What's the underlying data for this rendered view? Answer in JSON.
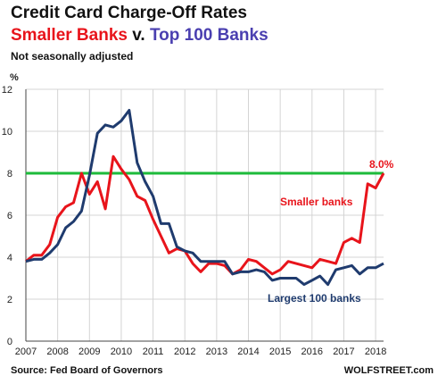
{
  "chart_data": {
    "type": "line",
    "title": "Credit Card Charge-Off Rates",
    "subtitle": {
      "part1": "Smaller Banks",
      "part2": " v. ",
      "part3": "Top 100 Banks"
    },
    "note": "Not seasonally adjusted",
    "ylabel": "%",
    "xlim": [
      2007,
      2018
    ],
    "ylim": [
      0,
      12
    ],
    "x_ticks": [
      2007,
      2008,
      2009,
      2010,
      2011,
      2012,
      2013,
      2014,
      2015,
      2016,
      2017,
      2018
    ],
    "y_ticks": [
      0,
      2,
      4,
      6,
      8,
      10,
      12
    ],
    "grid": true,
    "reference_line": {
      "value": 8.0,
      "color": "#1dbb3a"
    },
    "annotation": "8.0%",
    "series": [
      {
        "name": "Smaller banks",
        "color": "#e8141b",
        "points": [
          [
            2007.0,
            3.8
          ],
          [
            2007.25,
            4.1
          ],
          [
            2007.5,
            4.1
          ],
          [
            2007.75,
            4.6
          ],
          [
            2008.0,
            5.9
          ],
          [
            2008.25,
            6.4
          ],
          [
            2008.5,
            6.6
          ],
          [
            2008.75,
            8.0
          ],
          [
            2009.0,
            7.0
          ],
          [
            2009.25,
            7.6
          ],
          [
            2009.5,
            6.3
          ],
          [
            2009.75,
            8.8
          ],
          [
            2010.0,
            8.2
          ],
          [
            2010.25,
            7.7
          ],
          [
            2010.5,
            6.9
          ],
          [
            2010.75,
            6.7
          ],
          [
            2011.0,
            5.8
          ],
          [
            2011.25,
            5.0
          ],
          [
            2011.5,
            4.2
          ],
          [
            2011.75,
            4.4
          ],
          [
            2012.0,
            4.3
          ],
          [
            2012.25,
            3.7
          ],
          [
            2012.5,
            3.3
          ],
          [
            2012.75,
            3.7
          ],
          [
            2013.0,
            3.7
          ],
          [
            2013.25,
            3.6
          ],
          [
            2013.5,
            3.2
          ],
          [
            2013.75,
            3.4
          ],
          [
            2014.0,
            3.9
          ],
          [
            2014.25,
            3.8
          ],
          [
            2014.5,
            3.5
          ],
          [
            2014.75,
            3.2
          ],
          [
            2015.0,
            3.4
          ],
          [
            2015.25,
            3.8
          ],
          [
            2015.5,
            3.7
          ],
          [
            2015.75,
            3.6
          ],
          [
            2016.0,
            3.5
          ],
          [
            2016.25,
            3.9
          ],
          [
            2016.5,
            3.8
          ],
          [
            2016.75,
            3.7
          ],
          [
            2017.0,
            4.7
          ],
          [
            2017.25,
            4.9
          ],
          [
            2017.5,
            4.7
          ],
          [
            2017.75,
            7.5
          ],
          [
            2018.0,
            7.3
          ],
          [
            2018.25,
            8.0
          ]
        ]
      },
      {
        "name": "Largest 100 banks",
        "color": "#1f3b6e",
        "points": [
          [
            2007.0,
            3.8
          ],
          [
            2007.25,
            3.9
          ],
          [
            2007.5,
            3.9
          ],
          [
            2007.75,
            4.2
          ],
          [
            2008.0,
            4.6
          ],
          [
            2008.25,
            5.4
          ],
          [
            2008.5,
            5.7
          ],
          [
            2008.75,
            6.2
          ],
          [
            2009.0,
            7.9
          ],
          [
            2009.25,
            9.9
          ],
          [
            2009.5,
            10.3
          ],
          [
            2009.75,
            10.2
          ],
          [
            2010.0,
            10.5
          ],
          [
            2010.25,
            11.0
          ],
          [
            2010.5,
            8.5
          ],
          [
            2010.75,
            7.6
          ],
          [
            2011.0,
            6.9
          ],
          [
            2011.25,
            5.6
          ],
          [
            2011.5,
            5.6
          ],
          [
            2011.75,
            4.5
          ],
          [
            2012.0,
            4.3
          ],
          [
            2012.25,
            4.2
          ],
          [
            2012.5,
            3.8
          ],
          [
            2012.75,
            3.8
          ],
          [
            2013.0,
            3.8
          ],
          [
            2013.25,
            3.8
          ],
          [
            2013.5,
            3.2
          ],
          [
            2013.75,
            3.3
          ],
          [
            2014.0,
            3.3
          ],
          [
            2014.25,
            3.4
          ],
          [
            2014.5,
            3.3
          ],
          [
            2014.75,
            2.9
          ],
          [
            2015.0,
            3.0
          ],
          [
            2015.25,
            3.0
          ],
          [
            2015.5,
            3.0
          ],
          [
            2015.75,
            2.7
          ],
          [
            2016.0,
            2.9
          ],
          [
            2016.25,
            3.1
          ],
          [
            2016.5,
            2.7
          ],
          [
            2016.75,
            3.4
          ],
          [
            2017.0,
            3.5
          ],
          [
            2017.25,
            3.6
          ],
          [
            2017.5,
            3.2
          ],
          [
            2017.75,
            3.5
          ],
          [
            2018.0,
            3.5
          ],
          [
            2018.25,
            3.7
          ]
        ]
      }
    ],
    "series_labels": {
      "smaller": "Smaller banks",
      "largest": "Largest 100 banks"
    },
    "source": "Source: Fed Board of Governors",
    "site": "WOLFSTREET.com"
  }
}
